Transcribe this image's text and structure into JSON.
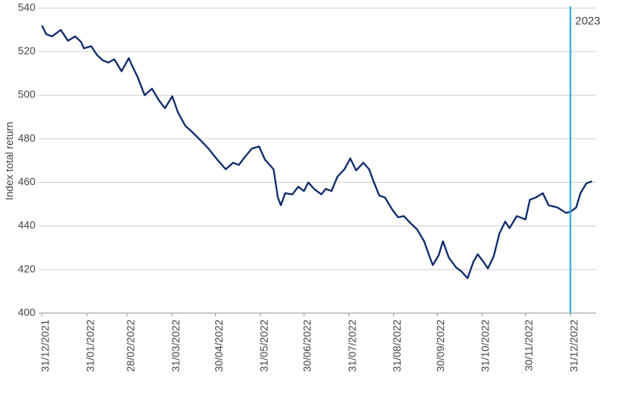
{
  "chart_data": {
    "type": "line",
    "y_label": "Index total return",
    "color": "#0f2b6b",
    "x": [
      "31/12/2021",
      "03/01/2022",
      "07/01/2022",
      "13/01/2022",
      "18/01/2022",
      "23/01/2022",
      "27/01/2022",
      "29/01/2022",
      "03/02/2022",
      "07/02/2022",
      "11/02/2022",
      "15/02/2022",
      "19/02/2022",
      "24/02/2022",
      "01/03/2022",
      "04/03/2022",
      "07/03/2022",
      "12/03/2022",
      "17/03/2022",
      "22/03/2022",
      "26/03/2022",
      "31/03/2022",
      "04/04/2022",
      "09/04/2022",
      "14/04/2022",
      "20/04/2022",
      "25/04/2022",
      "01/05/2022",
      "07/05/2022",
      "12/05/2022",
      "16/05/2022",
      "20/05/2022",
      "25/05/2022",
      "30/05/2022",
      "03/06/2022",
      "09/06/2022",
      "12/06/2022",
      "14/06/2022",
      "17/06/2022",
      "22/06/2022",
      "26/06/2022",
      "30/06/2022",
      "03/07/2022",
      "07/07/2022",
      "12/07/2022",
      "15/07/2022",
      "19/07/2022",
      "23/07/2022",
      "28/07/2022",
      "01/08/2022",
      "05/08/2022",
      "10/08/2022",
      "14/08/2022",
      "17/08/2022",
      "21/08/2022",
      "25/08/2022",
      "30/08/2022",
      "03/09/2022",
      "07/09/2022",
      "12/09/2022",
      "16/09/2022",
      "21/09/2022",
      "25/09/2022",
      "27/09/2022",
      "01/10/2022",
      "04/10/2022",
      "08/10/2022",
      "13/10/2022",
      "17/10/2022",
      "21/10/2022",
      "25/10/2022",
      "28/10/2022",
      "01/11/2022",
      "04/11/2022",
      "08/11/2022",
      "12/11/2022",
      "16/11/2022",
      "19/11/2022",
      "24/11/2022",
      "30/11/2022",
      "03/12/2022",
      "07/12/2022",
      "12/12/2022",
      "16/12/2022",
      "22/12/2022",
      "28/12/2022",
      "31/12/2022",
      "04/01/2023",
      "07/01/2023",
      "11/01/2023",
      "15/01/2023"
    ],
    "values": [
      532,
      528,
      527,
      530,
      525,
      527,
      524.5,
      521.5,
      522.5,
      518.5,
      516,
      515,
      516.5,
      511,
      517,
      512.5,
      508.5,
      500,
      503,
      497.5,
      494,
      499.5,
      492,
      486,
      483,
      479,
      475.5,
      470.5,
      466,
      469,
      468,
      471.5,
      475.5,
      476.5,
      470.5,
      466,
      453,
      449.5,
      455,
      454.5,
      458,
      456,
      460,
      457,
      454.5,
      457,
      456,
      462.5,
      466,
      471,
      465.5,
      469,
      466,
      460.5,
      454,
      453,
      447.5,
      444,
      444.5,
      441,
      438.5,
      433,
      425.5,
      422,
      426.5,
      433,
      425.5,
      421,
      419,
      416,
      423.5,
      427,
      423.5,
      420.5,
      426,
      436.5,
      442,
      439,
      444.5,
      443,
      452,
      453,
      455,
      449.5,
      448.5,
      446,
      446.5,
      448.5,
      455,
      459.5,
      460.5
    ],
    "xlim": [
      "31/12/2021",
      "18/01/2023"
    ],
    "xticks": [
      "31/12/2021",
      "31/01/2022",
      "28/02/2022",
      "31/03/2022",
      "30/04/2022",
      "31/05/2022",
      "30/06/2022",
      "31/07/2022",
      "31/08/2022",
      "30/09/2022",
      "31/10/2022",
      "30/11/2022",
      "31/12/2022"
    ],
    "ylim": [
      400,
      540
    ],
    "yticks": [
      400,
      420,
      440,
      460,
      480,
      500,
      520,
      540
    ],
    "grid": true,
    "annotation": {
      "x": "31/12/2022",
      "label": "2023",
      "color": "#29a8e0"
    }
  }
}
